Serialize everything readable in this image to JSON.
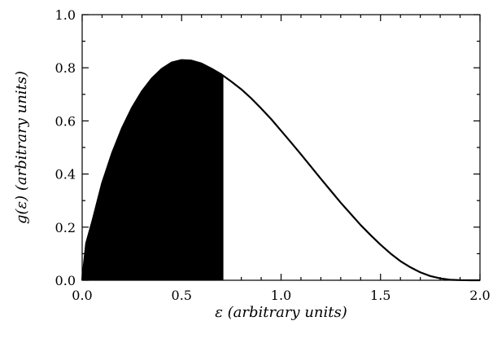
{
  "chart_data": {
    "type": "area",
    "xlabel": "ε  (arbitrary units)",
    "ylabel": "g(ε)  (arbitrary units)",
    "xlim": [
      0,
      2
    ],
    "ylim": [
      0,
      1
    ],
    "x_ticks": [
      "0.0",
      "0.5",
      "1.0",
      "1.5",
      "2.0"
    ],
    "y_ticks": [
      "0.0",
      "0.2",
      "0.4",
      "0.6",
      "0.8",
      "1.0"
    ],
    "grid": false,
    "series": [
      {
        "x": [
          0,
          0.02,
          0.05,
          0.1,
          0.15,
          0.2,
          0.25,
          0.3,
          0.35,
          0.4,
          0.45,
          0.5,
          0.55,
          0.6,
          0.65,
          0.7,
          0.75,
          0.8,
          0.85,
          0.9,
          0.95,
          1.0,
          1.05,
          1.1,
          1.15,
          1.2,
          1.25,
          1.3,
          1.35,
          1.4,
          1.45,
          1.5,
          1.55,
          1.6,
          1.65,
          1.7,
          1.75,
          1.8,
          1.85,
          1.9,
          1.95,
          2.0
        ],
        "y": [
          0,
          0.139,
          0.219,
          0.365,
          0.478,
          0.572,
          0.649,
          0.711,
          0.76,
          0.796,
          0.82,
          0.829,
          0.827,
          0.816,
          0.797,
          0.775,
          0.748,
          0.719,
          0.685,
          0.647,
          0.607,
          0.563,
          0.519,
          0.474,
          0.428,
          0.382,
          0.337,
          0.292,
          0.25,
          0.208,
          0.17,
          0.134,
          0.101,
          0.072,
          0.049,
          0.03,
          0.016,
          0.007,
          0.002,
          0.0005,
          0.0001,
          0
        ]
      }
    ],
    "shaded_region": {
      "x_from": 0,
      "x_to": 0.71,
      "color": "#000000"
    },
    "line_color": "#000000"
  }
}
